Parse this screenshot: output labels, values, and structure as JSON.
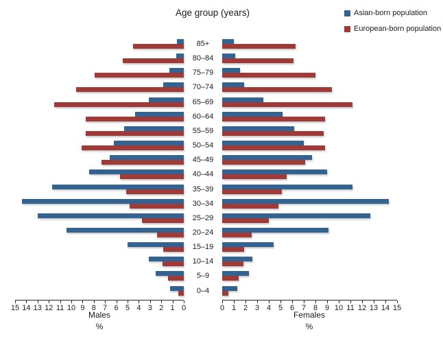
{
  "chart_data": {
    "type": "bar",
    "subtype": "population_pyramid",
    "title": "Age group (years)",
    "categories": [
      "85+",
      "80–84",
      "75–79",
      "70–74",
      "65–69",
      "60–64",
      "55–59",
      "50–54",
      "45–49",
      "40–44",
      "35–39",
      "30–34",
      "25–29",
      "20–24",
      "15–19",
      "10–14",
      "5–9",
      "0–4"
    ],
    "series": [
      {
        "name": "Asian-born population",
        "side": "Males",
        "color": "#346391",
        "values": [
          0.6,
          0.7,
          1.3,
          1.8,
          3.1,
          4.3,
          5.3,
          6.2,
          6.6,
          8.4,
          11.7,
          14.4,
          13.0,
          10.4,
          5.0,
          3.1,
          2.5,
          1.2
        ]
      },
      {
        "name": "European-born population",
        "side": "Males",
        "color": "#9E3A38",
        "values": [
          4.5,
          5.4,
          7.9,
          9.6,
          11.5,
          8.7,
          8.7,
          9.1,
          7.3,
          5.7,
          5.1,
          4.8,
          3.7,
          2.4,
          1.8,
          1.9,
          1.4,
          0.5
        ]
      },
      {
        "name": "Asian-born population",
        "side": "Females",
        "color": "#346391",
        "values": [
          1.0,
          1.1,
          1.5,
          1.9,
          3.5,
          5.2,
          6.2,
          7.0,
          7.7,
          9.0,
          11.2,
          14.3,
          12.7,
          9.1,
          4.4,
          2.6,
          2.3,
          1.3
        ]
      },
      {
        "name": "European-born population",
        "side": "Females",
        "color": "#9E3A38",
        "values": [
          6.3,
          6.1,
          8.0,
          9.4,
          11.2,
          8.8,
          8.7,
          8.8,
          7.1,
          5.5,
          5.1,
          4.8,
          4.0,
          2.5,
          1.9,
          1.8,
          1.4,
          0.5
        ]
      }
    ],
    "legend": [
      "Asian-born population",
      "European-born population"
    ],
    "legend_position": "top-right",
    "xlabel_left": "Males",
    "xlabel_right": "Females",
    "unit": "%",
    "xlim": [
      0,
      15
    ],
    "tick_step": 1,
    "grid": false,
    "male_tick_labels": [
      "15",
      "14",
      "13",
      "12",
      "11",
      "10",
      "9",
      "8",
      "7",
      "6",
      "5",
      "4",
      "3",
      "2",
      "1",
      "0"
    ],
    "female_tick_labels": [
      "0",
      "1",
      "2",
      "3",
      "4",
      "5",
      "6",
      "7",
      "8",
      "9",
      "10",
      "11",
      "12",
      "13",
      "14",
      "15"
    ]
  }
}
